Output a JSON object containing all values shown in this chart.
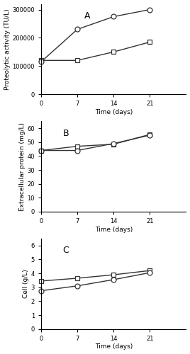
{
  "time": [
    0,
    7,
    14,
    21
  ],
  "A_square": [
    120000,
    120000,
    150000,
    185000
  ],
  "A_circle": [
    115000,
    230000,
    275000,
    300000
  ],
  "A_ylim": [
    0,
    320000
  ],
  "A_yticks": [
    0,
    100000,
    200000,
    300000
  ],
  "A_ytick_labels": [
    "0",
    "100000",
    "200000",
    "300000"
  ],
  "A_ylabel": "Proteolytic activity (TU/L)",
  "A_label": "A",
  "B_square": [
    44,
    47,
    48.5,
    55.5
  ],
  "B_circle": [
    44,
    44,
    49,
    55
  ],
  "B_ylim": [
    0,
    65
  ],
  "B_yticks": [
    0,
    10,
    20,
    30,
    40,
    50,
    60
  ],
  "B_ytick_labels": [
    "0",
    "10",
    "20",
    "30",
    "40",
    "50",
    "60"
  ],
  "B_ylabel": "Extracellular protein (mg/L)",
  "B_label": "B",
  "C_square": [
    3.45,
    3.65,
    3.9,
    4.2
  ],
  "C_circle": [
    2.75,
    3.1,
    3.55,
    4.05
  ],
  "C_ylim": [
    0,
    6.5
  ],
  "C_yticks": [
    0,
    1,
    2,
    3,
    4,
    5,
    6
  ],
  "C_ytick_labels": [
    "0",
    "1",
    "2",
    "3",
    "4",
    "5",
    "6"
  ],
  "C_ylabel": "Cell (g/L)",
  "C_label": "C",
  "xlabel": "Time (days)",
  "xlim": [
    0,
    28
  ],
  "xticks": [
    0,
    7,
    14,
    21
  ],
  "xtick_labels": [
    "0",
    "7",
    "14",
    "21"
  ],
  "line_color": "#333333",
  "marker_square": "s",
  "marker_circle": "o",
  "markersize": 5,
  "linewidth": 1.0,
  "label_fontsize": 6.5,
  "tick_fontsize": 6,
  "panel_label_fontsize": 9
}
